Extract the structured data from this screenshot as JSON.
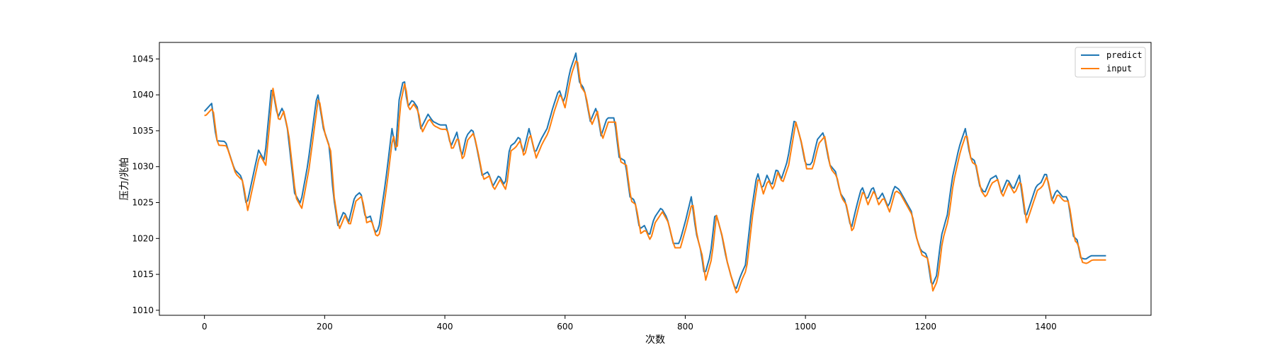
{
  "colors": {
    "predict": "#1f77b4",
    "input": "#ff7f0e",
    "axes": "#000000",
    "background": "#ffffff"
  },
  "chart_data": {
    "type": "line",
    "xlabel": "次数",
    "ylabel": "压力/兆帕",
    "xlim": [
      -75,
      1575
    ],
    "ylim": [
      1009.3,
      1047.3
    ],
    "xticks": [
      0,
      200,
      400,
      600,
      800,
      1000,
      1200,
      1400
    ],
    "yticks": [
      1010,
      1015,
      1020,
      1025,
      1030,
      1035,
      1040,
      1045
    ],
    "grid": false,
    "legend_position": "top-right",
    "anchors": [
      [
        0,
        1037.4
      ],
      [
        12,
        1038.5
      ],
      [
        20,
        1033.3
      ],
      [
        35,
        1033.2
      ],
      [
        50,
        1029.3
      ],
      [
        62,
        1028.3
      ],
      [
        70,
        1024.2
      ],
      [
        90,
        1032.0
      ],
      [
        100,
        1030.5
      ],
      [
        112,
        1041.2
      ],
      [
        122,
        1036.5
      ],
      [
        130,
        1038.0
      ],
      [
        138,
        1035.0
      ],
      [
        150,
        1026.0
      ],
      [
        160,
        1024.5
      ],
      [
        172,
        1030.0
      ],
      [
        188,
        1040.2
      ],
      [
        198,
        1035.0
      ],
      [
        208,
        1032.5
      ],
      [
        214,
        1026.0
      ],
      [
        222,
        1021.5
      ],
      [
        232,
        1023.5
      ],
      [
        240,
        1022.0
      ],
      [
        250,
        1025.5
      ],
      [
        260,
        1026.2
      ],
      [
        268,
        1022.5
      ],
      [
        276,
        1022.8
      ],
      [
        284,
        1020.5
      ],
      [
        290,
        1021.0
      ],
      [
        302,
        1028.0
      ],
      [
        312,
        1035.0
      ],
      [
        318,
        1032.0
      ],
      [
        324,
        1039.0
      ],
      [
        332,
        1042.2
      ],
      [
        338,
        1038.0
      ],
      [
        346,
        1039.0
      ],
      [
        354,
        1038.0
      ],
      [
        360,
        1035.0
      ],
      [
        372,
        1037.0
      ],
      [
        380,
        1036.0
      ],
      [
        392,
        1035.5
      ],
      [
        402,
        1035.5
      ],
      [
        410,
        1032.5
      ],
      [
        420,
        1034.5
      ],
      [
        428,
        1031.0
      ],
      [
        436,
        1034.0
      ],
      [
        446,
        1035.0
      ],
      [
        454,
        1032.0
      ],
      [
        462,
        1028.5
      ],
      [
        472,
        1029.0
      ],
      [
        480,
        1027.0
      ],
      [
        490,
        1028.5
      ],
      [
        500,
        1027.0
      ],
      [
        508,
        1032.5
      ],
      [
        516,
        1033.0
      ],
      [
        524,
        1034.0
      ],
      [
        530,
        1031.5
      ],
      [
        540,
        1035.0
      ],
      [
        550,
        1031.5
      ],
      [
        560,
        1033.5
      ],
      [
        570,
        1035.0
      ],
      [
        580,
        1038.0
      ],
      [
        590,
        1040.5
      ],
      [
        598,
        1038.5
      ],
      [
        608,
        1043.0
      ],
      [
        618,
        1045.5
      ],
      [
        624,
        1041.5
      ],
      [
        632,
        1040.5
      ],
      [
        642,
        1036.0
      ],
      [
        652,
        1038.0
      ],
      [
        660,
        1034.0
      ],
      [
        670,
        1036.5
      ],
      [
        682,
        1036.5
      ],
      [
        690,
        1031.0
      ],
      [
        700,
        1030.5
      ],
      [
        708,
        1025.5
      ],
      [
        716,
        1025.0
      ],
      [
        724,
        1021.0
      ],
      [
        732,
        1021.5
      ],
      [
        740,
        1020.0
      ],
      [
        748,
        1022.5
      ],
      [
        760,
        1024.0
      ],
      [
        770,
        1022.5
      ],
      [
        780,
        1019.0
      ],
      [
        790,
        1019.0
      ],
      [
        800,
        1022.0
      ],
      [
        810,
        1025.5
      ],
      [
        818,
        1020.5
      ],
      [
        826,
        1018.0
      ],
      [
        832,
        1014.5
      ],
      [
        842,
        1017.5
      ],
      [
        850,
        1023.5
      ],
      [
        860,
        1020.5
      ],
      [
        868,
        1017.0
      ],
      [
        876,
        1014.5
      ],
      [
        884,
        1012.5
      ],
      [
        892,
        1014.5
      ],
      [
        900,
        1016.0
      ],
      [
        910,
        1023.5
      ],
      [
        920,
        1029.0
      ],
      [
        928,
        1026.5
      ],
      [
        936,
        1028.5
      ],
      [
        944,
        1027.0
      ],
      [
        952,
        1029.5
      ],
      [
        960,
        1028.0
      ],
      [
        970,
        1030.5
      ],
      [
        982,
        1036.5
      ],
      [
        992,
        1033.5
      ],
      [
        1000,
        1030.0
      ],
      [
        1010,
        1030.0
      ],
      [
        1020,
        1033.5
      ],
      [
        1030,
        1034.5
      ],
      [
        1040,
        1030.0
      ],
      [
        1050,
        1029.0
      ],
      [
        1058,
        1026.0
      ],
      [
        1066,
        1025.0
      ],
      [
        1076,
        1021.0
      ],
      [
        1086,
        1024.5
      ],
      [
        1094,
        1027.0
      ],
      [
        1102,
        1025.0
      ],
      [
        1112,
        1027.0
      ],
      [
        1120,
        1025.0
      ],
      [
        1128,
        1026.0
      ],
      [
        1138,
        1024.0
      ],
      [
        1148,
        1027.0
      ],
      [
        1156,
        1026.5
      ],
      [
        1166,
        1025.0
      ],
      [
        1176,
        1023.5
      ],
      [
        1184,
        1020.0
      ],
      [
        1192,
        1018.0
      ],
      [
        1202,
        1017.5
      ],
      [
        1210,
        1013.0
      ],
      [
        1218,
        1014.5
      ],
      [
        1226,
        1020.0
      ],
      [
        1236,
        1023.0
      ],
      [
        1244,
        1028.0
      ],
      [
        1256,
        1032.5
      ],
      [
        1266,
        1035.0
      ],
      [
        1274,
        1031.0
      ],
      [
        1282,
        1030.5
      ],
      [
        1290,
        1027.0
      ],
      [
        1298,
        1026.0
      ],
      [
        1308,
        1028.0
      ],
      [
        1318,
        1028.5
      ],
      [
        1326,
        1026.0
      ],
      [
        1336,
        1028.0
      ],
      [
        1346,
        1026.5
      ],
      [
        1356,
        1028.5
      ],
      [
        1366,
        1022.5
      ],
      [
        1376,
        1025.0
      ],
      [
        1384,
        1027.0
      ],
      [
        1392,
        1027.5
      ],
      [
        1400,
        1029.0
      ],
      [
        1410,
        1025.0
      ],
      [
        1418,
        1026.5
      ],
      [
        1428,
        1025.5
      ],
      [
        1436,
        1025.5
      ],
      [
        1446,
        1020.0
      ],
      [
        1452,
        1019.5
      ],
      [
        1458,
        1017.0
      ],
      [
        1466,
        1016.8
      ],
      [
        1475,
        1017.3
      ]
    ],
    "series": [
      {
        "name": "predict",
        "color": "#1f77b4",
        "lag": 0,
        "offset": 0.3,
        "step": 3
      },
      {
        "name": "input",
        "color": "#ff7f0e",
        "lag": 2,
        "offset": -0.3,
        "step": 3
      }
    ]
  }
}
